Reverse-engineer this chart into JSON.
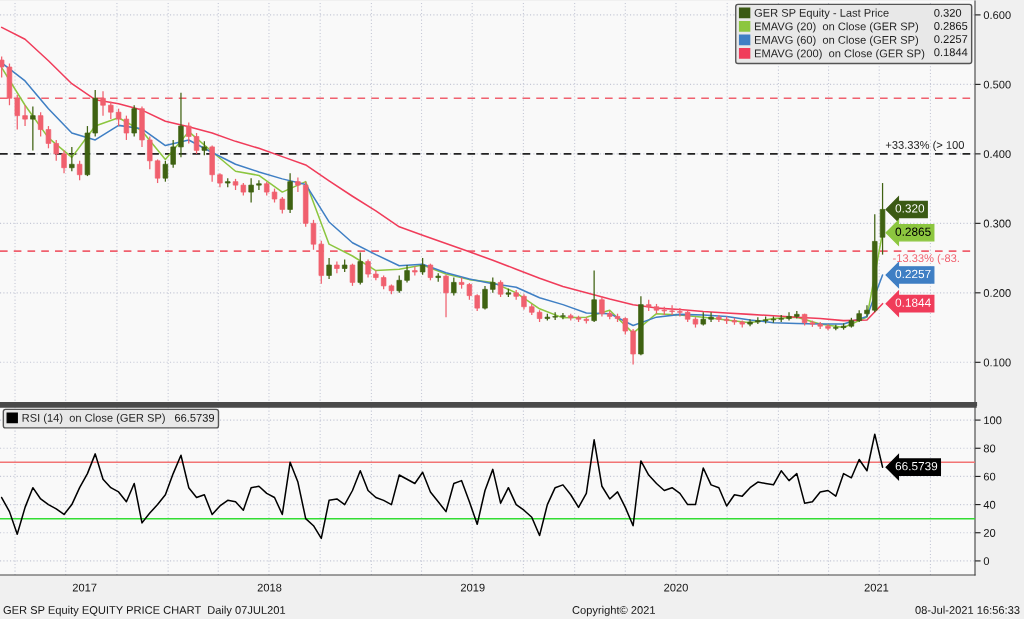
{
  "chart_data": [
    {
      "type": "candlestick",
      "legend": "top right",
      "grid": true,
      "tick_labels": "y",
      "xlim": [
        "2017-03-05",
        "2021-12-20"
      ],
      "xticks": [
        {
          "value": "2017-04-01",
          "label": null
        },
        {
          "value": "2017-07-01",
          "label": null
        },
        {
          "value": "2017-10-01",
          "label": null
        },
        {
          "value": "2018-01-01",
          "label": null
        },
        {
          "value": "2018-04-01",
          "label": null
        },
        {
          "value": "2018-07-01",
          "label": null
        },
        {
          "value": "2018-10-01",
          "label": null
        },
        {
          "value": "2019-01-01",
          "label": null
        },
        {
          "value": "2019-04-01",
          "label": null
        },
        {
          "value": "2019-07-01",
          "label": null
        },
        {
          "value": "2019-10-01",
          "label": null
        },
        {
          "value": "2020-01-01",
          "label": null
        },
        {
          "value": "2020-04-01",
          "label": null
        },
        {
          "value": "2020-07-01",
          "label": null
        },
        {
          "value": "2020-10-01",
          "label": null
        },
        {
          "value": "2021-01-01",
          "label": null
        },
        {
          "value": "2021-04-01",
          "label": null
        },
        {
          "value": "2021-07-01",
          "label": null
        },
        {
          "value": "2021-10-01",
          "label": null
        }
      ],
      "ylim": [
        0.04,
        0.62
      ],
      "yticks": [
        {
          "value": 0.1,
          "label": "0.100"
        },
        {
          "value": 0.2,
          "label": "0.200"
        },
        {
          "value": 0.3,
          "label": "0.300"
        },
        {
          "value": 0.4,
          "label": "0.400"
        },
        {
          "value": 0.5,
          "label": "0.500"
        },
        {
          "value": 0.6,
          "label": "0.600"
        }
      ],
      "ref_lines": [
        {
          "axis": "y",
          "value": 0.48,
          "color": "#f0606e",
          "line_style": "dashed"
        },
        {
          "axis": "y",
          "value": 0.4,
          "color": "#222222",
          "line_style": "dashed"
        },
        {
          "axis": "y",
          "value": 0.26,
          "color": "#f0606e",
          "line_style": "dashed"
        }
      ],
      "annotations": [
        {
          "text": "+33.33% (> 100",
          "x": "2021-07-12",
          "y": 0.4
        },
        {
          "text": "-13.33% (-83.",
          "x": "2021-07-25",
          "y": 0.26
        }
      ],
      "x": [
        "2017-03-08",
        "2017-04-19",
        "2017-05-31",
        "2017-07-12",
        "2017-08-23",
        "2017-10-04",
        "2017-11-15",
        "2017-12-27",
        "2018-02-07",
        "2018-03-21",
        "2018-05-02",
        "2018-06-13",
        "2018-07-25",
        "2018-09-05",
        "2018-10-17",
        "2018-11-28",
        "2019-01-09",
        "2019-02-20",
        "2019-04-03",
        "2019-05-15",
        "2019-06-26",
        "2019-08-07",
        "2019-09-18",
        "2019-10-30",
        "2019-12-11",
        "2020-01-22",
        "2020-03-04",
        "2020-04-15",
        "2020-05-27",
        "2020-07-08",
        "2020-08-19",
        "2020-09-30",
        "2020-11-11",
        "2020-12-23",
        "2021-02-03",
        "2021-03-17",
        "2021-04-28",
        "2021-06-09",
        "2021-07-07"
      ],
      "series": [
        {
          "type": "candlestick",
          "name": "GER SP Equity - Last Price",
          "color": "#3b5a14",
          "x": [
            "2017-03-08",
            "2017-03-22",
            "2017-04-05",
            "2017-04-19",
            "2017-05-03",
            "2017-05-17",
            "2017-05-31",
            "2017-06-14",
            "2017-06-28",
            "2017-07-12",
            "2017-07-26",
            "2017-08-09",
            "2017-08-23",
            "2017-09-06",
            "2017-09-20",
            "2017-10-04",
            "2017-10-18",
            "2017-11-01",
            "2017-11-15",
            "2017-11-29",
            "2017-12-13",
            "2017-12-27",
            "2018-01-10",
            "2018-01-24",
            "2018-02-07",
            "2018-02-21",
            "2018-03-07",
            "2018-03-21",
            "2018-04-04",
            "2018-04-18",
            "2018-05-02",
            "2018-05-16",
            "2018-05-30",
            "2018-06-13",
            "2018-06-27",
            "2018-07-11",
            "2018-07-25",
            "2018-08-08",
            "2018-08-22",
            "2018-09-05",
            "2018-09-19",
            "2018-10-03",
            "2018-10-17",
            "2018-10-31",
            "2018-11-14",
            "2018-11-28",
            "2018-12-12",
            "2018-12-26",
            "2019-01-09",
            "2019-01-23",
            "2019-02-06",
            "2019-02-20",
            "2019-03-06",
            "2019-03-20",
            "2019-04-03",
            "2019-04-17",
            "2019-05-01",
            "2019-05-15",
            "2019-05-29",
            "2019-06-12",
            "2019-06-26",
            "2019-07-10",
            "2019-07-24",
            "2019-08-07",
            "2019-08-21",
            "2019-09-04",
            "2019-09-18",
            "2019-10-02",
            "2019-10-16",
            "2019-10-30",
            "2019-11-13",
            "2019-11-27",
            "2019-12-11",
            "2019-12-25",
            "2020-01-08",
            "2020-01-22",
            "2020-02-05",
            "2020-02-19",
            "2020-03-04",
            "2020-03-18",
            "2020-04-01",
            "2020-04-15",
            "2020-04-29",
            "2020-05-13",
            "2020-05-27",
            "2020-06-10",
            "2020-06-24",
            "2020-07-08",
            "2020-07-22",
            "2020-08-05",
            "2020-08-19",
            "2020-09-02",
            "2020-09-16",
            "2020-09-30",
            "2020-10-14",
            "2020-10-28",
            "2020-11-11",
            "2020-11-25",
            "2020-12-09",
            "2020-12-23",
            "2021-01-06",
            "2021-01-20",
            "2021-02-03",
            "2021-02-17",
            "2021-03-03",
            "2021-03-17",
            "2021-03-31",
            "2021-04-14",
            "2021-04-28",
            "2021-05-12",
            "2021-05-26",
            "2021-06-09",
            "2021-06-23",
            "2021-07-07"
          ],
          "ohlc": [
            [
              0.535,
              0.54,
              0.51,
              0.525
            ],
            [
              0.525,
              0.53,
              0.47,
              0.48
            ],
            [
              0.48,
              0.485,
              0.435,
              0.455
            ],
            [
              0.455,
              0.47,
              0.44,
              0.45
            ],
            [
              0.45,
              0.468,
              0.405,
              0.455
            ],
            [
              0.455,
              0.46,
              0.425,
              0.435
            ],
            [
              0.435,
              0.44,
              0.408,
              0.415
            ],
            [
              0.415,
              0.42,
              0.39,
              0.4
            ],
            [
              0.4,
              0.405,
              0.372,
              0.38
            ],
            [
              0.38,
              0.41,
              0.375,
              0.385
            ],
            [
              0.385,
              0.39,
              0.362,
              0.37
            ],
            [
              0.37,
              0.44,
              0.368,
              0.43
            ],
            [
              0.43,
              0.492,
              0.425,
              0.48
            ],
            [
              0.48,
              0.49,
              0.455,
              0.47
            ],
            [
              0.47,
              0.475,
              0.45,
              0.46
            ],
            [
              0.46,
              0.465,
              0.44,
              0.45
            ],
            [
              0.45,
              0.455,
              0.42,
              0.43
            ],
            [
              0.43,
              0.47,
              0.425,
              0.465
            ],
            [
              0.465,
              0.468,
              0.41,
              0.42
            ],
            [
              0.42,
              0.425,
              0.378,
              0.39
            ],
            [
              0.39,
              0.392,
              0.358,
              0.365
            ],
            [
              0.365,
              0.39,
              0.36,
              0.385
            ],
            [
              0.385,
              0.42,
              0.38,
              0.41
            ],
            [
              0.41,
              0.488,
              0.395,
              0.44
            ],
            [
              0.44,
              0.445,
              0.415,
              0.425
            ],
            [
              0.425,
              0.43,
              0.4,
              0.405
            ],
            [
              0.405,
              0.418,
              0.398,
              0.41
            ],
            [
              0.41,
              0.412,
              0.36,
              0.37
            ],
            [
              0.37,
              0.372,
              0.352,
              0.358
            ],
            [
              0.358,
              0.365,
              0.352,
              0.36
            ],
            [
              0.36,
              0.364,
              0.348,
              0.355
            ],
            [
              0.355,
              0.358,
              0.34,
              0.345
            ],
            [
              0.345,
              0.365,
              0.33,
              0.355
            ],
            [
              0.355,
              0.362,
              0.348,
              0.357
            ],
            [
              0.357,
              0.36,
              0.34,
              0.345
            ],
            [
              0.345,
              0.35,
              0.33,
              0.335
            ],
            [
              0.335,
              0.338,
              0.314,
              0.32
            ],
            [
              0.32,
              0.372,
              0.315,
              0.36
            ],
            [
              0.36,
              0.366,
              0.345,
              0.355
            ],
            [
              0.355,
              0.36,
              0.295,
              0.3
            ],
            [
              0.3,
              0.305,
              0.262,
              0.27
            ],
            [
              0.27,
              0.275,
              0.213,
              0.225
            ],
            [
              0.225,
              0.25,
              0.22,
              0.24
            ],
            [
              0.24,
              0.245,
              0.228,
              0.235
            ],
            [
              0.235,
              0.248,
              0.23,
              0.24
            ],
            [
              0.24,
              0.242,
              0.21,
              0.215
            ],
            [
              0.215,
              0.258,
              0.212,
              0.245
            ],
            [
              0.245,
              0.248,
              0.222,
              0.227
            ],
            [
              0.227,
              0.232,
              0.218,
              0.222
            ],
            [
              0.222,
              0.225,
              0.205,
              0.21
            ],
            [
              0.21,
              0.212,
              0.198,
              0.203
            ],
            [
              0.203,
              0.225,
              0.2,
              0.218
            ],
            [
              0.218,
              0.24,
              0.215,
              0.232
            ],
            [
              0.232,
              0.238,
              0.225,
              0.23
            ],
            [
              0.23,
              0.25,
              0.226,
              0.24
            ],
            [
              0.24,
              0.242,
              0.218,
              0.222
            ],
            [
              0.222,
              0.228,
              0.216,
              0.224
            ],
            [
              0.224,
              0.226,
              0.165,
              0.2
            ],
            [
              0.2,
              0.222,
              0.196,
              0.215
            ],
            [
              0.215,
              0.222,
              0.206,
              0.212
            ],
            [
              0.212,
              0.214,
              0.19,
              0.196
            ],
            [
              0.196,
              0.198,
              0.174,
              0.178
            ],
            [
              0.178,
              0.21,
              0.176,
              0.205
            ],
            [
              0.205,
              0.222,
              0.2,
              0.215
            ],
            [
              0.215,
              0.218,
              0.194,
              0.198
            ],
            [
              0.198,
              0.206,
              0.194,
              0.2
            ],
            [
              0.2,
              0.204,
              0.19,
              0.195
            ],
            [
              0.195,
              0.198,
              0.176,
              0.18
            ],
            [
              0.18,
              0.184,
              0.168,
              0.172
            ],
            [
              0.172,
              0.175,
              0.158,
              0.163
            ],
            [
              0.163,
              0.17,
              0.16,
              0.165
            ],
            [
              0.165,
              0.172,
              0.161,
              0.166
            ],
            [
              0.166,
              0.171,
              0.162,
              0.167
            ],
            [
              0.167,
              0.17,
              0.16,
              0.164
            ],
            [
              0.164,
              0.167,
              0.158,
              0.162
            ],
            [
              0.162,
              0.165,
              0.156,
              0.16
            ],
            [
              0.16,
              0.232,
              0.158,
              0.19
            ],
            [
              0.19,
              0.195,
              0.166,
              0.17
            ],
            [
              0.17,
              0.174,
              0.162,
              0.166
            ],
            [
              0.166,
              0.17,
              0.158,
              0.163
            ],
            [
              0.163,
              0.165,
              0.14,
              0.145
            ],
            [
              0.145,
              0.148,
              0.097,
              0.112
            ],
            [
              0.112,
              0.195,
              0.11,
              0.183
            ],
            [
              0.183,
              0.19,
              0.174,
              0.18
            ],
            [
              0.18,
              0.184,
              0.17,
              0.175
            ],
            [
              0.175,
              0.18,
              0.168,
              0.174
            ],
            [
              0.174,
              0.182,
              0.168,
              0.173
            ],
            [
              0.173,
              0.178,
              0.166,
              0.172
            ],
            [
              0.172,
              0.175,
              0.158,
              0.162
            ],
            [
              0.162,
              0.165,
              0.15,
              0.155
            ],
            [
              0.155,
              0.172,
              0.153,
              0.162
            ],
            [
              0.162,
              0.172,
              0.158,
              0.165
            ],
            [
              0.165,
              0.168,
              0.158,
              0.162
            ],
            [
              0.162,
              0.166,
              0.155,
              0.16
            ],
            [
              0.16,
              0.164,
              0.154,
              0.158
            ],
            [
              0.158,
              0.16,
              0.15,
              0.155
            ],
            [
              0.155,
              0.162,
              0.152,
              0.158
            ],
            [
              0.158,
              0.165,
              0.155,
              0.16
            ],
            [
              0.16,
              0.166,
              0.156,
              0.161
            ],
            [
              0.161,
              0.166,
              0.157,
              0.162
            ],
            [
              0.162,
              0.168,
              0.158,
              0.163
            ],
            [
              0.163,
              0.172,
              0.16,
              0.166
            ],
            [
              0.166,
              0.174,
              0.163,
              0.169
            ],
            [
              0.169,
              0.17,
              0.153,
              0.157
            ],
            [
              0.157,
              0.16,
              0.151,
              0.155
            ],
            [
              0.155,
              0.158,
              0.148,
              0.152
            ],
            [
              0.152,
              0.155,
              0.146,
              0.149
            ],
            [
              0.149,
              0.154,
              0.146,
              0.15
            ],
            [
              0.15,
              0.156,
              0.147,
              0.152
            ],
            [
              0.152,
              0.164,
              0.15,
              0.16
            ],
            [
              0.16,
              0.175,
              0.158,
              0.17
            ],
            [
              0.17,
              0.182,
              0.166,
              0.175
            ],
            [
              0.175,
              0.313,
              0.172,
              0.274
            ],
            [
              0.28,
              0.358,
              0.255,
              0.32
            ]
          ],
          "colors": [
            "#f0606e",
            "#f0606e",
            "#f0606e",
            "#f0606e",
            "#3f6212",
            "#f0606e",
            "#f0606e",
            "#f0606e",
            "#f0606e",
            "#3f6212",
            "#f0606e",
            "#3f6212",
            "#3f6212",
            "#f0606e",
            "#f0606e",
            "#f0606e",
            "#f0606e",
            "#3f6212",
            "#f0606e",
            "#f0606e",
            "#f0606e",
            "#3f6212",
            "#3f6212",
            "#3f6212",
            "#f0606e",
            "#f0606e",
            "#3f6212",
            "#f0606e",
            "#f0606e",
            "#3f6212",
            "#f0606e",
            "#f0606e",
            "#3f6212",
            "#3f6212",
            "#f0606e",
            "#f0606e",
            "#f0606e",
            "#3f6212",
            "#f0606e",
            "#f0606e",
            "#f0606e",
            "#f0606e",
            "#3f6212",
            "#f0606e",
            "#3f6212",
            "#f0606e",
            "#3f6212",
            "#f0606e",
            "#f0606e",
            "#f0606e",
            "#f0606e",
            "#3f6212",
            "#3f6212",
            "#f0606e",
            "#3f6212",
            "#f0606e",
            "#3f6212",
            "#f0606e",
            "#3f6212",
            "#f0606e",
            "#f0606e",
            "#f0606e",
            "#3f6212",
            "#3f6212",
            "#f0606e",
            "#3f6212",
            "#f0606e",
            "#f0606e",
            "#f0606e",
            "#f0606e",
            "#3f6212",
            "#3f6212",
            "#3f6212",
            "#f0606e",
            "#f0606e",
            "#f0606e",
            "#3f6212",
            "#f0606e",
            "#f0606e",
            "#f0606e",
            "#f0606e",
            "#f0606e",
            "#3f6212",
            "#f0606e",
            "#f0606e",
            "#f0606e",
            "#f0606e",
            "#f0606e",
            "#f0606e",
            "#f0606e",
            "#3f6212",
            "#3f6212",
            "#f0606e",
            "#f0606e",
            "#f0606e",
            "#f0606e",
            "#3f6212",
            "#3f6212",
            "#3f6212",
            "#3f6212",
            "#3f6212",
            "#3f6212",
            "#3f6212",
            "#f0606e",
            "#f0606e",
            "#f0606e",
            "#f0606e",
            "#3f6212",
            "#3f6212",
            "#3f6212",
            "#3f6212",
            "#3f6212",
            "#3f6212",
            "#3f6212"
          ],
          "value_labels": [
            null,
            null,
            null,
            null,
            null,
            null,
            null,
            null,
            null,
            null,
            null,
            null,
            null,
            null,
            null,
            null,
            null,
            null,
            null,
            null,
            null,
            null,
            null,
            null,
            null,
            null,
            null,
            null,
            null,
            null,
            null,
            null,
            null,
            null,
            null,
            null,
            null,
            null,
            null,
            null,
            null,
            null,
            null,
            null,
            null,
            null,
            null,
            null,
            null,
            null,
            null,
            null,
            null,
            null,
            null,
            null,
            null,
            null,
            null,
            null,
            null,
            null,
            null,
            null,
            null,
            null,
            null,
            null,
            null,
            null,
            null,
            null,
            null,
            null,
            null,
            null,
            null,
            null,
            null,
            null,
            null,
            null,
            null,
            null,
            null,
            null,
            null,
            null,
            null,
            null,
            null,
            null,
            null,
            null,
            null,
            null,
            null,
            null,
            null,
            null,
            null,
            null,
            null,
            null,
            null,
            null,
            null,
            null,
            null,
            null,
            null,
            null,
            null,
            "0.320"
          ]
        },
        {
          "type": "line",
          "name": "EMAVG (20)  on Close (GER SP)",
          "color": "#8cc63f",
          "values": [
            0.524,
            0.47,
            0.423,
            0.395,
            0.44,
            0.452,
            0.433,
            0.392,
            0.432,
            0.403,
            0.375,
            0.369,
            0.345,
            0.36,
            0.27,
            0.253,
            0.232,
            0.234,
            0.24,
            0.227,
            0.219,
            0.215,
            0.2,
            0.177,
            0.164,
            0.165,
            0.175,
            0.142,
            0.17,
            0.168,
            0.165,
            0.161,
            0.157,
            0.163,
            0.165,
            0.155,
            0.15,
            0.165,
            0.2865
          ],
          "value_labels": [
            null,
            null,
            null,
            null,
            null,
            null,
            null,
            null,
            null,
            null,
            null,
            null,
            null,
            null,
            null,
            null,
            null,
            null,
            null,
            null,
            null,
            null,
            null,
            null,
            null,
            null,
            null,
            null,
            null,
            null,
            null,
            null,
            null,
            null,
            null,
            null,
            null,
            null,
            "0.2865"
          ]
        },
        {
          "type": "line",
          "name": "EMAVG (60)  on Close (GER SP)",
          "color": "#3f7fc4",
          "values": [
            0.531,
            0.505,
            0.465,
            0.43,
            0.42,
            0.441,
            0.436,
            0.412,
            0.42,
            0.402,
            0.385,
            0.374,
            0.364,
            0.356,
            0.302,
            0.272,
            0.255,
            0.239,
            0.241,
            0.229,
            0.22,
            0.213,
            0.208,
            0.193,
            0.183,
            0.171,
            0.17,
            0.153,
            0.165,
            0.169,
            0.168,
            0.166,
            0.161,
            0.157,
            0.156,
            0.155,
            0.155,
            0.166,
            0.2257
          ],
          "value_labels": [
            null,
            null,
            null,
            null,
            null,
            null,
            null,
            null,
            null,
            null,
            null,
            null,
            null,
            null,
            null,
            null,
            null,
            null,
            null,
            null,
            null,
            null,
            null,
            null,
            null,
            null,
            null,
            null,
            null,
            null,
            null,
            null,
            null,
            null,
            null,
            null,
            null,
            null,
            "0.2257"
          ]
        },
        {
          "type": "line",
          "name": "EMAVG (200)  on Close (GER SP)",
          "color": "#f03c5a",
          "values": [
            0.582,
            0.565,
            0.534,
            0.501,
            0.478,
            0.472,
            0.463,
            0.447,
            0.439,
            0.43,
            0.418,
            0.408,
            0.396,
            0.384,
            0.361,
            0.339,
            0.318,
            0.295,
            0.283,
            0.271,
            0.259,
            0.247,
            0.234,
            0.221,
            0.209,
            0.2,
            0.191,
            0.183,
            0.178,
            0.176,
            0.173,
            0.171,
            0.169,
            0.167,
            0.165,
            0.163,
            0.16,
            0.161,
            0.1844
          ],
          "value_labels": [
            null,
            null,
            null,
            null,
            null,
            null,
            null,
            null,
            null,
            null,
            null,
            null,
            null,
            null,
            null,
            null,
            null,
            null,
            null,
            null,
            null,
            null,
            null,
            null,
            null,
            null,
            null,
            null,
            null,
            null,
            null,
            null,
            null,
            null,
            null,
            null,
            null,
            null,
            "0.1844"
          ]
        }
      ]
    },
    {
      "type": "line",
      "legend": "top left",
      "grid": true,
      "xlim": [
        "2017-03-05",
        "2021-12-20"
      ],
      "xticks": [
        {
          "value": "2017-04-01",
          "label": null
        },
        {
          "value": "2017-07-01",
          "label": null
        },
        {
          "value": "2017-10-01",
          "label": null
        },
        {
          "value": "2018-01-01",
          "label": null
        },
        {
          "value": "2018-04-01",
          "label": null
        },
        {
          "value": "2018-07-01",
          "label": null
        },
        {
          "value": "2018-10-01",
          "label": null
        },
        {
          "value": "2019-01-01",
          "label": null
        },
        {
          "value": "2019-04-01",
          "label": null
        },
        {
          "value": "2019-07-01",
          "label": null
        },
        {
          "value": "2019-10-01",
          "label": null
        },
        {
          "value": "2020-01-01",
          "label": null
        },
        {
          "value": "2020-04-01",
          "label": null
        },
        {
          "value": "2020-07-01",
          "label": null
        },
        {
          "value": "2020-10-01",
          "label": null
        },
        {
          "value": "2021-01-01",
          "label": null
        },
        {
          "value": "2021-04-01",
          "label": null
        },
        {
          "value": "2021-07-01",
          "label": null
        },
        {
          "value": "2021-10-01",
          "label": null
        },
        {
          "value": "2017-08-04",
          "label": "2017"
        },
        {
          "value": "2018-07-02",
          "label": "2018"
        },
        {
          "value": "2019-07-02",
          "label": "2019"
        },
        {
          "value": "2020-07-01",
          "label": "2020"
        },
        {
          "value": "2021-06-26",
          "label": "2021"
        }
      ],
      "ylim": [
        -10,
        110
      ],
      "yticks": [
        0,
        20,
        40,
        60,
        80,
        100
      ],
      "ref_lines": [
        {
          "axis": "y",
          "value": 70,
          "color": "#f27474"
        },
        {
          "axis": "y",
          "value": 30,
          "color": "#33dd33"
        }
      ],
      "annotations": [
        "GER SP Equity EQUITY PRICE CHART  Daily 07JUL201",
        "Copyright© 2021",
        "08-Jul-2021 16:56:33"
      ],
      "x": [
        "2017-03-08",
        "2017-03-22",
        "2017-04-05",
        "2017-04-19",
        "2017-05-03",
        "2017-05-17",
        "2017-05-31",
        "2017-06-14",
        "2017-06-28",
        "2017-07-12",
        "2017-07-26",
        "2017-08-09",
        "2017-08-23",
        "2017-09-06",
        "2017-09-20",
        "2017-10-04",
        "2017-10-18",
        "2017-11-01",
        "2017-11-15",
        "2017-11-29",
        "2017-12-13",
        "2017-12-27",
        "2018-01-10",
        "2018-01-24",
        "2018-02-07",
        "2018-02-21",
        "2018-03-07",
        "2018-03-21",
        "2018-04-04",
        "2018-04-18",
        "2018-05-02",
        "2018-05-16",
        "2018-05-30",
        "2018-06-13",
        "2018-06-27",
        "2018-07-11",
        "2018-07-25",
        "2018-08-08",
        "2018-08-22",
        "2018-09-05",
        "2018-09-19",
        "2018-10-03",
        "2018-10-17",
        "2018-10-31",
        "2018-11-14",
        "2018-11-28",
        "2018-12-12",
        "2018-12-26",
        "2019-01-09",
        "2019-01-23",
        "2019-02-06",
        "2019-02-20",
        "2019-03-06",
        "2019-03-20",
        "2019-04-03",
        "2019-04-17",
        "2019-05-01",
        "2019-05-15",
        "2019-05-29",
        "2019-06-12",
        "2019-06-26",
        "2019-07-10",
        "2019-07-24",
        "2019-08-07",
        "2019-08-21",
        "2019-09-04",
        "2019-09-18",
        "2019-10-02",
        "2019-10-16",
        "2019-10-30",
        "2019-11-13",
        "2019-11-27",
        "2019-12-11",
        "2019-12-25",
        "2020-01-08",
        "2020-01-22",
        "2020-02-05",
        "2020-02-19",
        "2020-03-04",
        "2020-03-18",
        "2020-04-01",
        "2020-04-15",
        "2020-04-29",
        "2020-05-13",
        "2020-05-27",
        "2020-06-10",
        "2020-06-24",
        "2020-07-08",
        "2020-07-22",
        "2020-08-05",
        "2020-08-19",
        "2020-09-02",
        "2020-09-16",
        "2020-09-30",
        "2020-10-14",
        "2020-10-28",
        "2020-11-11",
        "2020-11-25",
        "2020-12-09",
        "2020-12-23",
        "2021-01-06",
        "2021-01-20",
        "2021-02-03",
        "2021-02-17",
        "2021-03-03",
        "2021-03-17",
        "2021-03-31",
        "2021-04-14",
        "2021-04-28",
        "2021-05-12",
        "2021-05-26",
        "2021-06-09",
        "2021-06-23",
        "2021-07-07"
      ],
      "series": [
        {
          "name": "RSI (14)  on Close (GER SP)",
          "color": "#000000",
          "values": [
            45,
            35,
            19,
            38,
            52,
            44,
            40,
            37,
            33,
            40,
            52,
            62,
            76,
            58,
            52,
            49,
            42,
            55,
            27,
            34,
            40,
            47,
            62,
            75,
            52,
            45,
            47,
            33,
            39,
            43,
            42,
            36,
            52,
            53,
            48,
            45,
            33,
            70,
            56,
            30,
            25,
            16,
            43,
            44,
            40,
            50,
            64,
            50,
            45,
            43,
            40,
            61,
            58,
            55,
            63,
            49,
            42,
            35,
            55,
            57,
            42,
            26,
            50,
            65,
            41,
            52,
            40,
            36,
            31,
            18,
            40,
            52,
            54,
            47,
            38,
            48,
            86,
            53,
            44,
            49,
            38,
            25,
            71,
            61,
            55,
            50,
            52,
            48,
            40,
            40,
            66,
            54,
            52,
            39,
            47,
            46,
            52,
            56,
            55,
            54,
            64,
            57,
            62,
            41,
            42,
            49,
            50,
            46,
            62,
            59,
            72,
            64,
            90,
            66.5739
          ],
          "value_labels": [
            null,
            null,
            null,
            null,
            null,
            null,
            null,
            null,
            null,
            null,
            null,
            null,
            null,
            null,
            null,
            null,
            null,
            null,
            null,
            null,
            null,
            null,
            null,
            null,
            null,
            null,
            null,
            null,
            null,
            null,
            null,
            null,
            null,
            null,
            null,
            null,
            null,
            null,
            null,
            null,
            null,
            null,
            null,
            null,
            null,
            null,
            null,
            null,
            null,
            null,
            null,
            null,
            null,
            null,
            null,
            null,
            null,
            null,
            null,
            null,
            null,
            null,
            null,
            null,
            null,
            null,
            null,
            null,
            null,
            null,
            null,
            null,
            null,
            null,
            null,
            null,
            null,
            null,
            null,
            null,
            null,
            null,
            null,
            null,
            null,
            null,
            null,
            null,
            null,
            null,
            null,
            null,
            null,
            null,
            null,
            null,
            null,
            null,
            null,
            null,
            null,
            null,
            null,
            null,
            null,
            null,
            null,
            null,
            null,
            null,
            null,
            null,
            null,
            "66.5739"
          ]
        }
      ]
    }
  ]
}
